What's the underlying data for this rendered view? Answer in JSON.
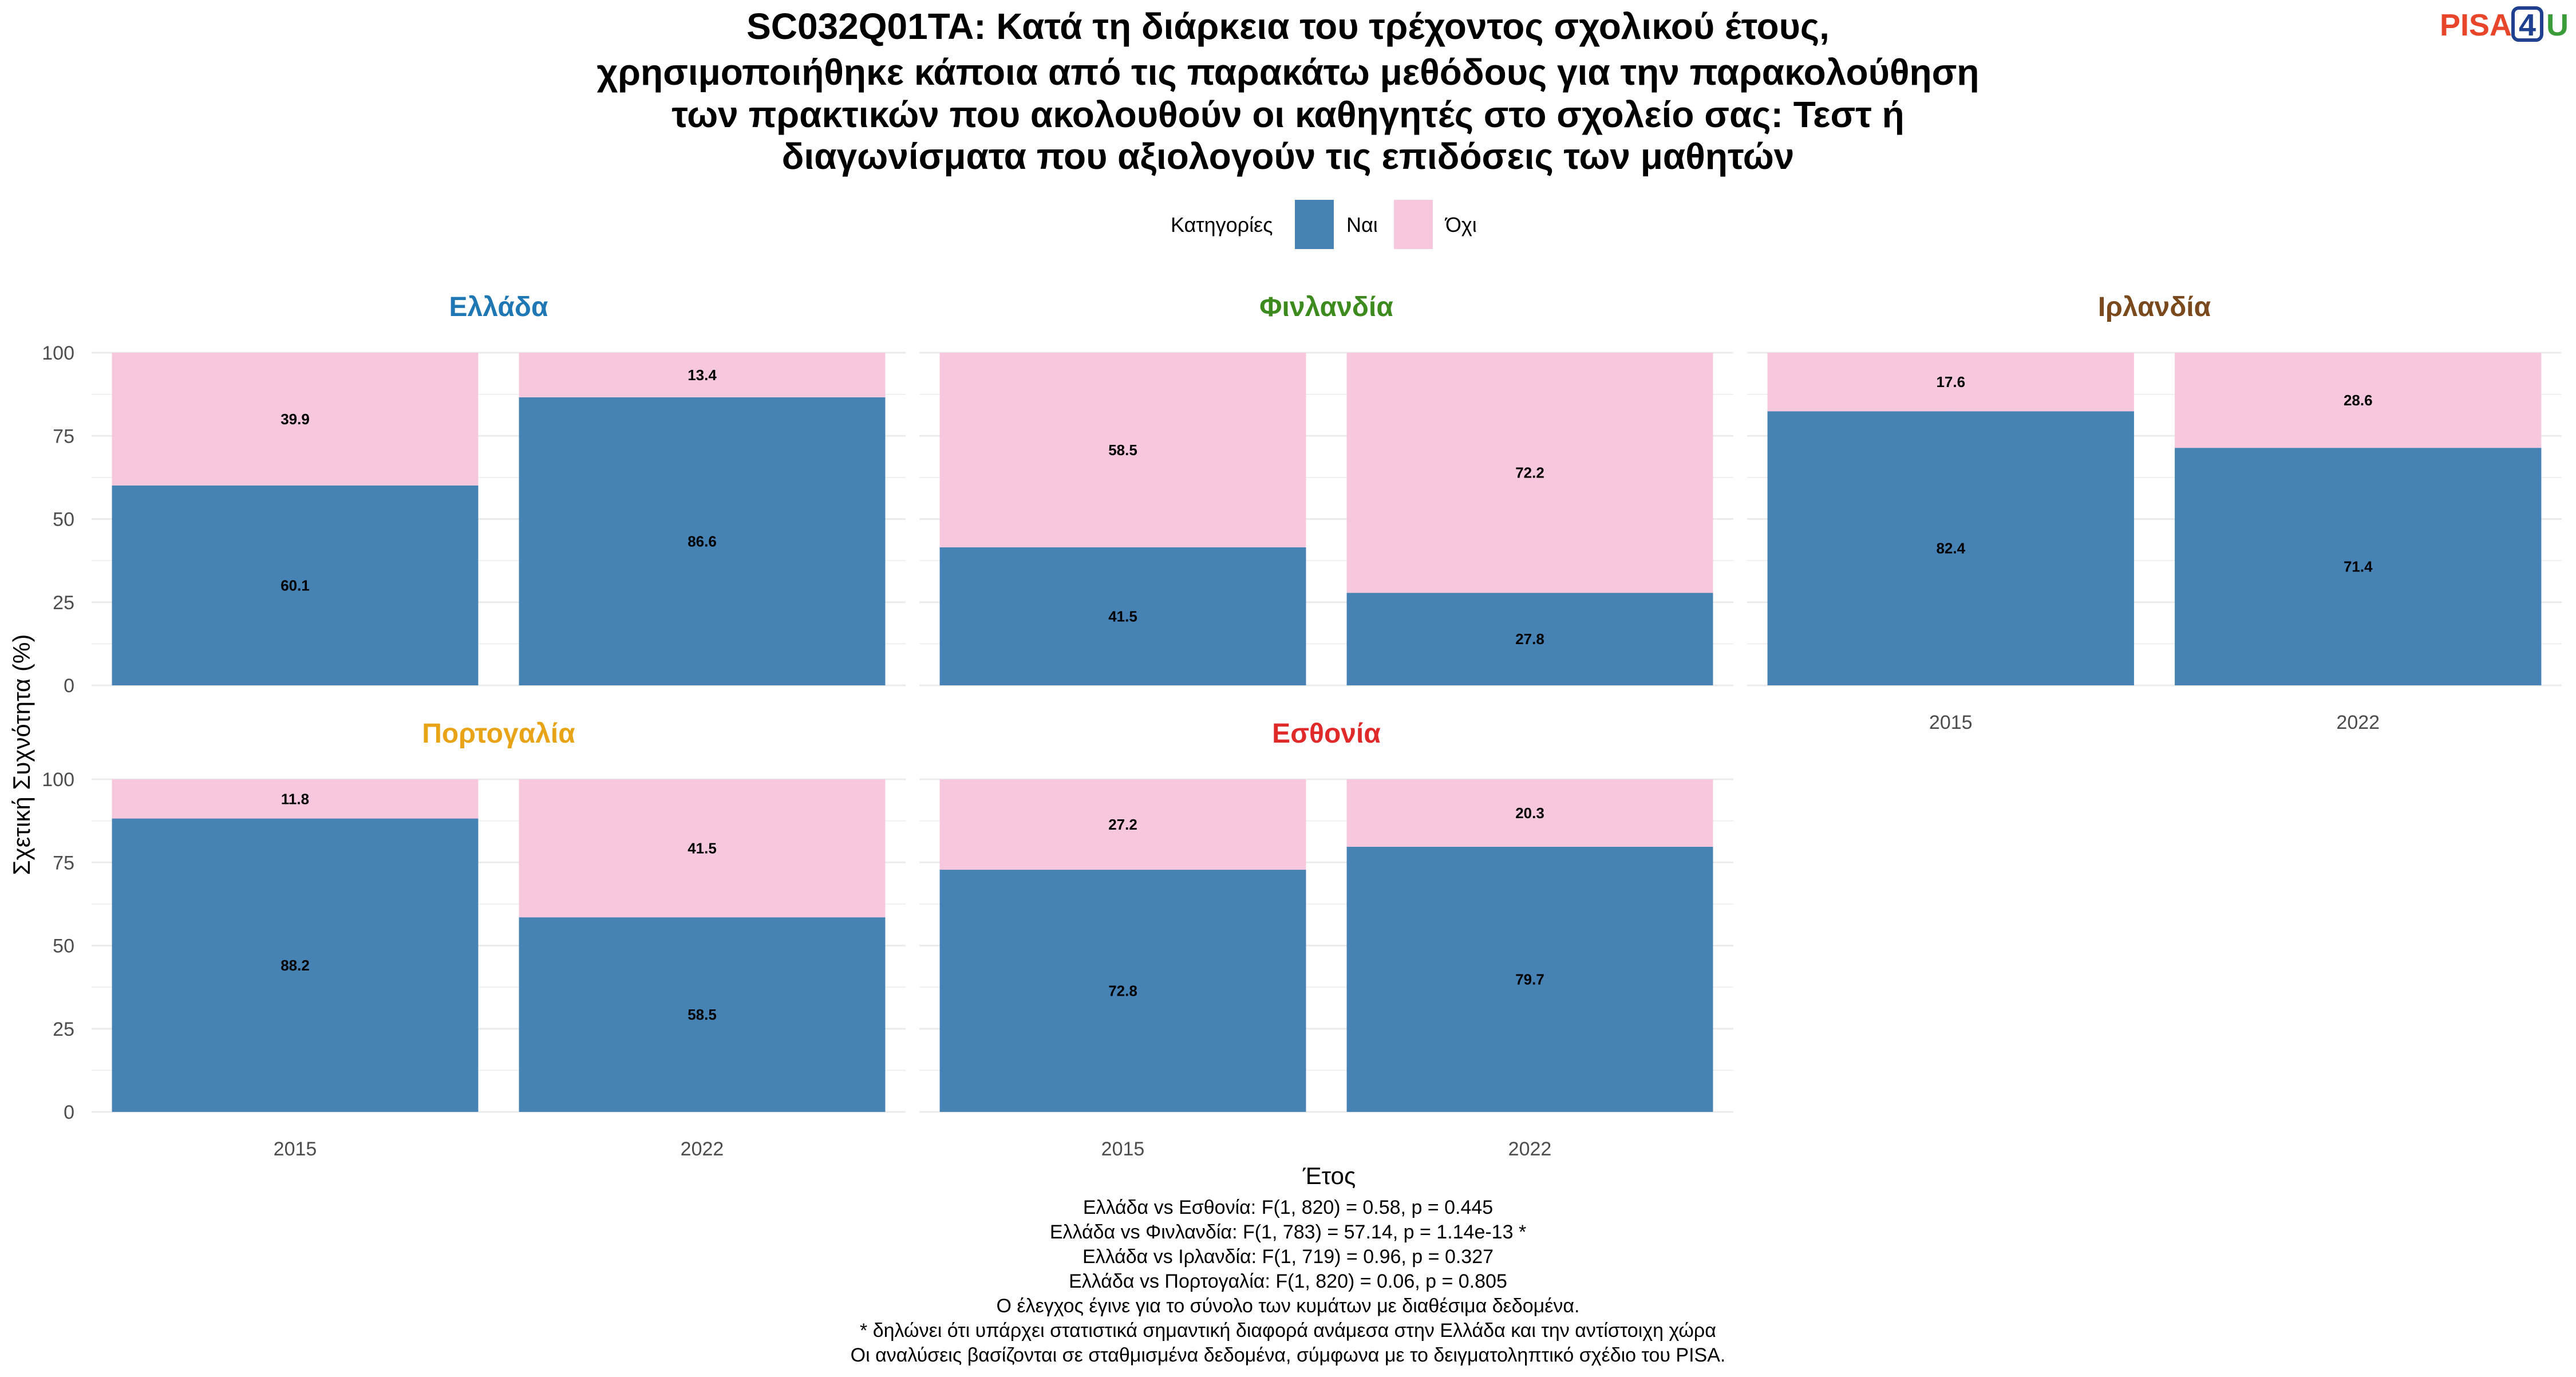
{
  "title_lines": [
    "SC032Q01TA: Κατά τη διάρκεια του τρέχοντος σχολικού έτους,",
    "χρησιμοποιήθηκε κάποια από τις παρακάτω μεθόδους για την παρακολούθηση",
    "των πρακτικών που ακολουθούν οι καθηγητές στο σχολείο σας: Τεστ ή",
    "διαγωνίσματα που αξιολογούν τις επιδόσεις των μαθητών"
  ],
  "logo": {
    "part1": "PISA",
    "part2": "4",
    "part3": "U",
    "color1": "#e8462a",
    "color2": "#1f3f8f",
    "color3": "#3a9d3a"
  },
  "legend": {
    "title": "Κατηγορίες",
    "items": [
      {
        "label": "Ναι",
        "color": "#4682b4"
      },
      {
        "label": "Όχι",
        "color": "#f7c8dd"
      }
    ]
  },
  "axes": {
    "ylabel": "Σχετική Συχνότητα (%)",
    "xlabel": "Έτος",
    "yticks": [
      "0",
      "25",
      "50",
      "75",
      "100"
    ]
  },
  "chart_data": {
    "type": "bar",
    "stacked": true,
    "categories": [
      "2015",
      "2022"
    ],
    "ylim": [
      0,
      100
    ],
    "grid": true,
    "legend_position": "top",
    "facets": [
      {
        "name": "Ελλάδα",
        "color": "#1f78b4",
        "series": [
          {
            "name": "Ναι",
            "values": [
              60.1,
              86.6
            ]
          },
          {
            "name": "Όχι",
            "values": [
              39.9,
              13.4
            ]
          }
        ]
      },
      {
        "name": "Φινλανδία",
        "color": "#3d8b1f",
        "series": [
          {
            "name": "Ναι",
            "values": [
              41.5,
              27.8
            ]
          },
          {
            "name": "Όχι",
            "values": [
              58.5,
              72.2
            ]
          }
        ]
      },
      {
        "name": "Ιρλανδία",
        "color": "#7a4a1e",
        "series": [
          {
            "name": "Ναι",
            "values": [
              82.4,
              71.4
            ]
          },
          {
            "name": "Όχι",
            "values": [
              17.6,
              28.6
            ]
          }
        ]
      },
      {
        "name": "Πορτογαλία",
        "color": "#e8a317",
        "series": [
          {
            "name": "Ναι",
            "values": [
              88.2,
              58.5
            ]
          },
          {
            "name": "Όχι",
            "values": [
              11.8,
              41.5
            ]
          }
        ]
      },
      {
        "name": "Εσθονία",
        "color": "#e02a2a",
        "series": [
          {
            "name": "Ναι",
            "values": [
              72.8,
              79.7
            ]
          },
          {
            "name": "Όχι",
            "values": [
              27.2,
              20.3
            ]
          }
        ]
      }
    ]
  },
  "notes": [
    "Ελλάδα vs Εσθονία: F(1, 820) = 0.58, p = 0.445",
    "Ελλάδα vs Φινλανδία: F(1, 783) = 57.14, p = 1.14e-13 *",
    "Ελλάδα vs Ιρλανδία: F(1, 719) = 0.96, p = 0.327",
    "Ελλάδα vs Πορτογαλία: F(1, 820) = 0.06, p = 0.805",
    "Ο έλεγχος έγινε για το σύνολο των κυμάτων με διαθέσιμα δεδομένα.",
    "* δηλώνει ότι υπάρχει στατιστικά σημαντική διαφορά ανάμεσα στην Ελλάδα και την αντίστοιχη χώρα",
    "Οι αναλύσεις βασίζονται σε σταθμισμένα δεδομένα, σύμφωνα με το δειγματοληπτικό σχέδιο του PISA."
  ]
}
